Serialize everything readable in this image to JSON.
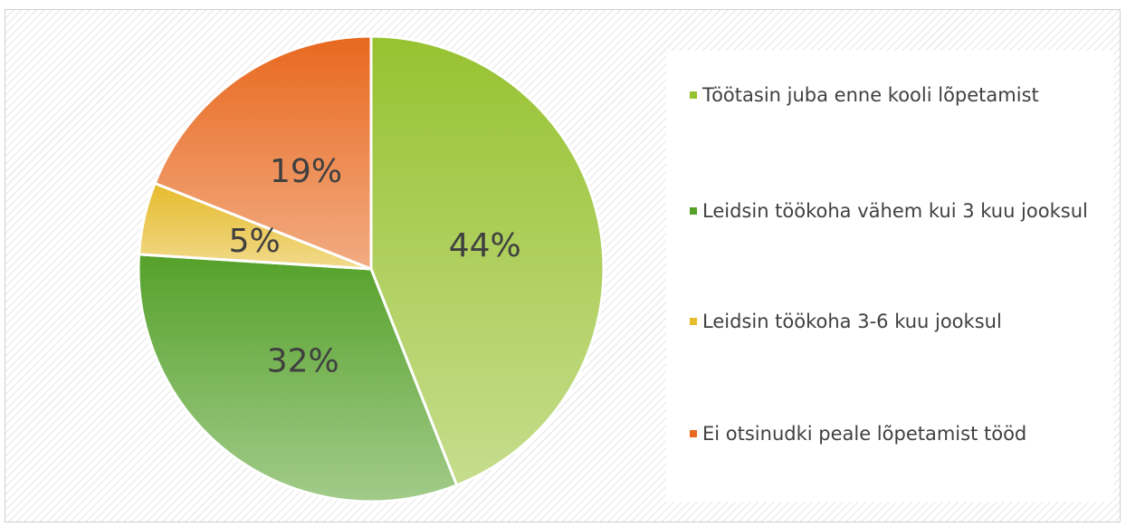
{
  "chart_data": {
    "type": "pie",
    "categories": [
      "Töötasin juba enne kooli lõpetamist",
      "Leidsin töökoha vähem kui 3 kuu jooksul",
      "Leidsin töökoha 3-6 kuu jooksul",
      "Ei otsinudki peale lõpetamist tööd"
    ],
    "values": [
      44,
      32,
      5,
      19
    ],
    "value_labels": [
      "44%",
      "32%",
      "5%",
      "19%"
    ],
    "colors": [
      "#97c230",
      "#55a12a",
      "#e6bb2c",
      "#e8681e"
    ],
    "legend": "right"
  }
}
